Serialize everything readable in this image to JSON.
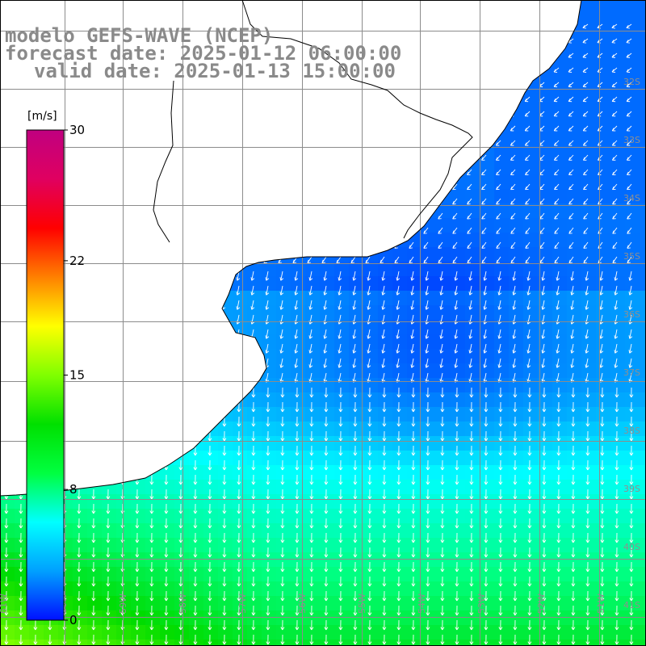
{
  "title": {
    "line1": "modelo GEFS-WAVE (NCEP)",
    "line2": "forecast date: 2025-01-12 06:00:00",
    "line3": "valid date: 2025-01-13 15:00:00"
  },
  "colorbar": {
    "unit": "[m/s]",
    "min": 0,
    "max": 30,
    "ticks": [
      "30",
      "22",
      "15",
      "8",
      "0"
    ],
    "colors": [
      "#0010ff",
      "#00a0ff",
      "#00ffff",
      "#00ff40",
      "#00e000",
      "#80ff00",
      "#ffff00",
      "#ff8000",
      "#ff0000",
      "#e00060",
      "#c00080"
    ]
  },
  "lat_labels": [
    "32S",
    "33S",
    "34S",
    "35S",
    "36S",
    "37S",
    "38S",
    "39S",
    "40S",
    "41S"
  ],
  "lon_labels": [
    "61W",
    "60W",
    "59W",
    "58W",
    "57W",
    "56W",
    "55W",
    "54W",
    "53W",
    "52W",
    "51W"
  ],
  "colors": {
    "land": "#ffffff",
    "grid": "#8c8c8c",
    "coast": "#000000",
    "arrows": "#ffffff",
    "title": "#8a8a8a"
  }
}
